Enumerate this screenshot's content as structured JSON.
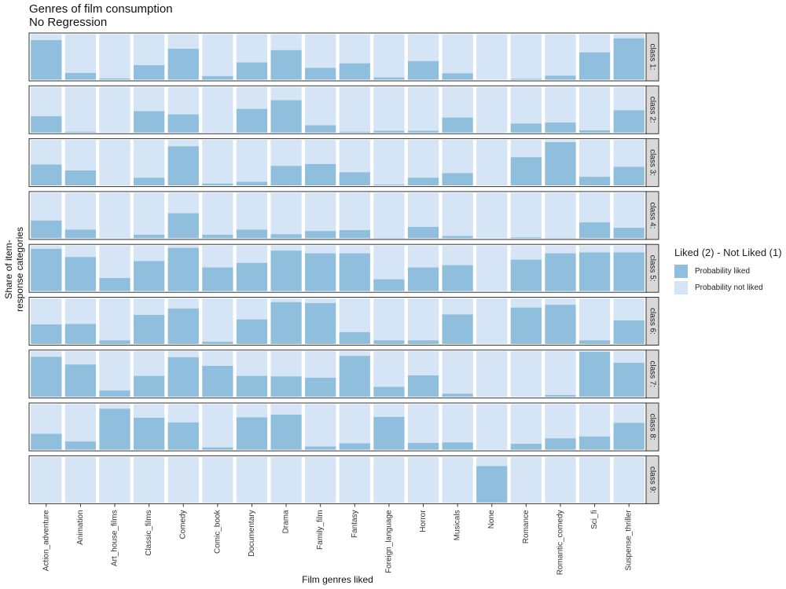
{
  "chart_data": {
    "type": "bar",
    "subtype": "stacked-100-facets",
    "title": "Genres of film consumption",
    "subtitle": "No Regression",
    "xlabel": "Film genres liked",
    "ylabel": "Share of item-response categories",
    "ylim": [
      0,
      1
    ],
    "grid": false,
    "categories": [
      "Action_adventure",
      "Animation",
      "Art_house_films",
      "Classic_films",
      "Comedy",
      "Comic_book",
      "Documentary",
      "Drama",
      "Family_film",
      "Fantasy",
      "Foreign_language",
      "Horror",
      "Musicals",
      "None",
      "Romance",
      "Romantic_comedy",
      "Sci_fi",
      "Suspense_thriller"
    ],
    "legend": {
      "title": "Liked (2) - Not Liked (1)",
      "position": "right",
      "entries": [
        {
          "label": "Probability liked",
          "color": "#8fbfdd"
        },
        {
          "label": "Probability not liked",
          "color": "#d5e5f5"
        }
      ]
    },
    "facets": [
      {
        "label": "class 1:",
        "liked": [
          0.87,
          0.15,
          0.03,
          0.32,
          0.68,
          0.08,
          0.38,
          0.65,
          0.26,
          0.36,
          0.05,
          0.41,
          0.14,
          0.0,
          0.02,
          0.09,
          0.6,
          0.91
        ]
      },
      {
        "label": "class 2:",
        "liked": [
          0.36,
          0.02,
          0.0,
          0.47,
          0.4,
          0.0,
          0.52,
          0.71,
          0.16,
          0.02,
          0.04,
          0.04,
          0.33,
          0.0,
          0.2,
          0.22,
          0.05,
          0.49
        ]
      },
      {
        "label": "class 3:",
        "liked": [
          0.46,
          0.33,
          0.0,
          0.17,
          0.86,
          0.04,
          0.08,
          0.43,
          0.47,
          0.29,
          0.02,
          0.17,
          0.27,
          0.0,
          0.62,
          0.95,
          0.19,
          0.41
        ]
      },
      {
        "label": "class 4:",
        "liked": [
          0.39,
          0.19,
          0.0,
          0.08,
          0.55,
          0.08,
          0.19,
          0.09,
          0.16,
          0.18,
          0.01,
          0.25,
          0.05,
          0.0,
          0.02,
          0.01,
          0.35,
          0.23
        ]
      },
      {
        "label": "class 5:",
        "liked": [
          0.93,
          0.75,
          0.29,
          0.66,
          0.95,
          0.52,
          0.62,
          0.89,
          0.83,
          0.83,
          0.26,
          0.52,
          0.57,
          0.0,
          0.69,
          0.83,
          0.85,
          0.85
        ]
      },
      {
        "label": "class 6:",
        "liked": [
          0.43,
          0.44,
          0.08,
          0.64,
          0.78,
          0.05,
          0.54,
          0.92,
          0.9,
          0.26,
          0.08,
          0.08,
          0.65,
          0.0,
          0.8,
          0.86,
          0.08,
          0.52
        ]
      },
      {
        "label": "class 7:",
        "liked": [
          0.88,
          0.71,
          0.14,
          0.46,
          0.87,
          0.68,
          0.46,
          0.45,
          0.42,
          0.9,
          0.22,
          0.47,
          0.07,
          0.0,
          0.0,
          0.04,
          0.99,
          0.75
        ]
      },
      {
        "label": "class 8:",
        "liked": [
          0.35,
          0.18,
          0.9,
          0.7,
          0.6,
          0.05,
          0.71,
          0.77,
          0.07,
          0.14,
          0.72,
          0.15,
          0.16,
          0.0,
          0.13,
          0.25,
          0.29,
          0.59
        ]
      },
      {
        "label": "class 9:",
        "liked": [
          0.0,
          0.0,
          0.0,
          0.0,
          0.0,
          0.0,
          0.0,
          0.0,
          0.0,
          0.0,
          0.0,
          0.0,
          0.0,
          0.8,
          0.0,
          0.0,
          0.0,
          0.0
        ]
      }
    ]
  }
}
